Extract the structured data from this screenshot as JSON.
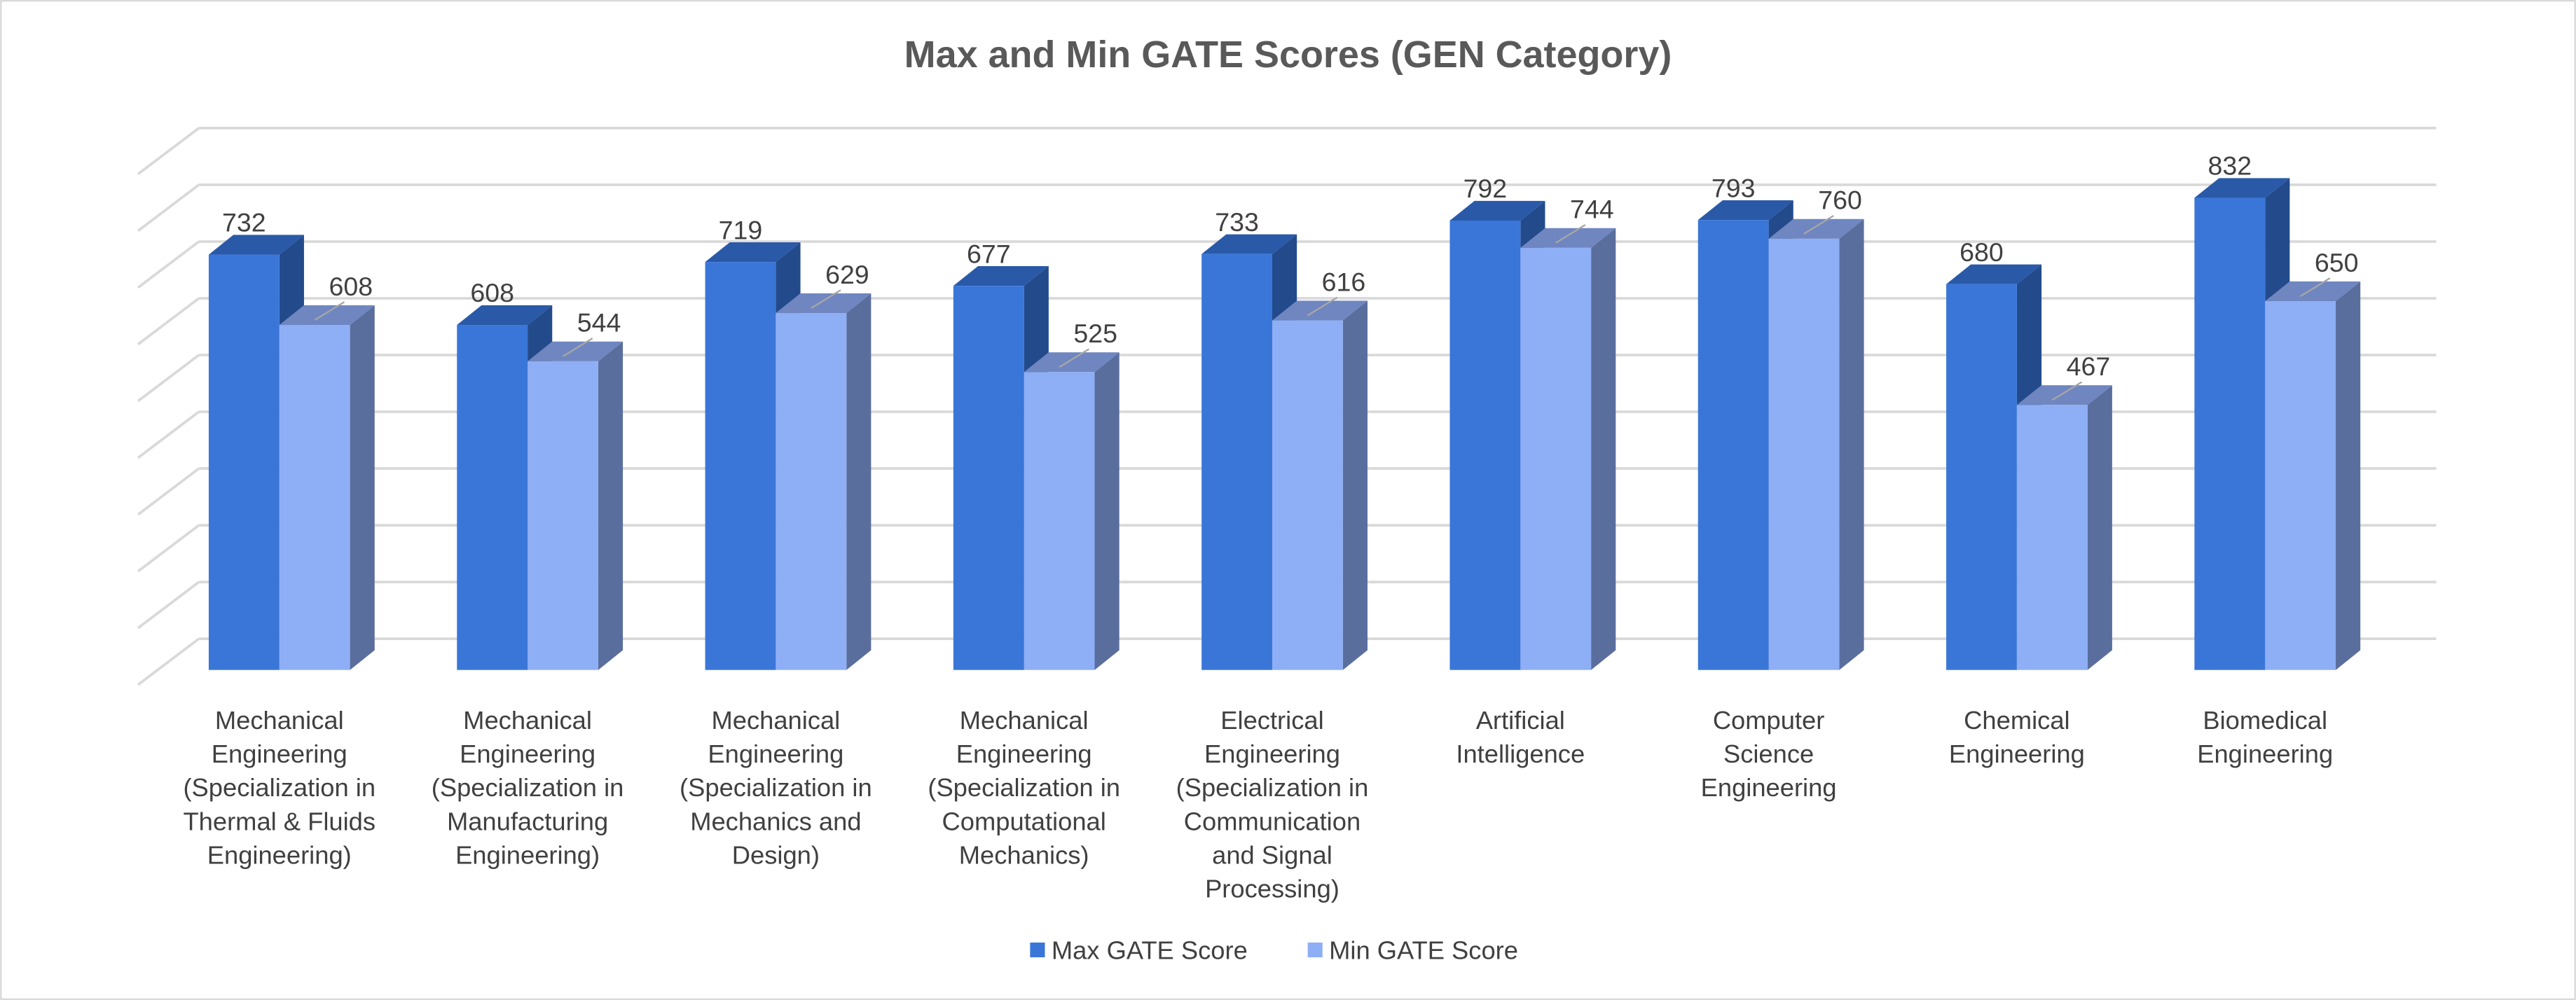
{
  "chart_data": {
    "type": "bar",
    "style": "3d-clustered-column",
    "title": "Max and Min GATE Scores (GEN Category)",
    "xlabel": "",
    "ylabel": "",
    "ylim": [
      0,
      900
    ],
    "y_tick_step": 100,
    "y_tick_labels_visible": false,
    "grid": true,
    "legend": "bottom",
    "categories": [
      "Mechanical\nEngineering\n(Specialization in\nThermal & Fluids\nEngineering)",
      "Mechanical\nEngineering\n(Specialization in\nManufacturing\nEngineering)",
      "Mechanical\nEngineering\n(Specialization in\nMechanics and\nDesign)",
      "Mechanical\nEngineering\n(Specialization in\nComputational\nMechanics)",
      "Electrical\nEngineering\n(Specialization in\nCommunication\nand Signal\nProcessing)",
      "Artificial\nIntelligence",
      "Computer\nScience\nEngineering",
      "Chemical\nEngineering",
      "Biomedical\nEngineering"
    ],
    "series": [
      {
        "name": "Max GATE Score",
        "values": [
          732,
          608,
          719,
          677,
          733,
          792,
          793,
          680,
          832
        ],
        "color": "#3A76D8"
      },
      {
        "name": "Min GATE Score",
        "values": [
          608,
          544,
          629,
          525,
          616,
          744,
          760,
          467,
          650
        ],
        "color": "#8EAEF5"
      }
    ]
  }
}
